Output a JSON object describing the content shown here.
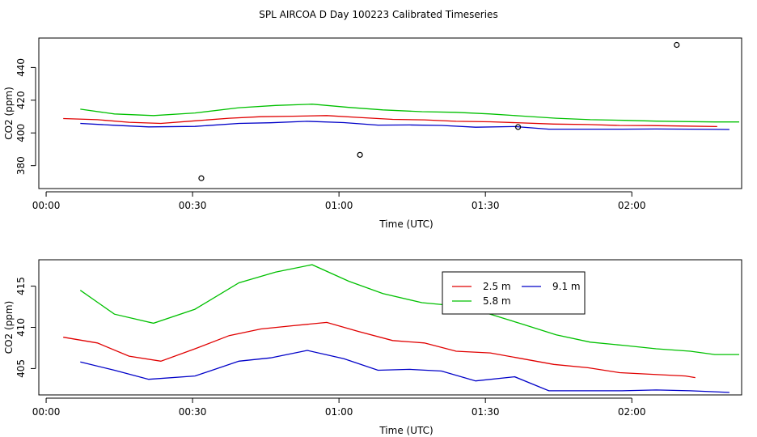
{
  "title": "SPL AIRCOA D  Day 100223  Calibrated Timeseries",
  "colors": {
    "s25": "#e00000",
    "s58": "#00c000",
    "s91": "#0000c8",
    "axis": "#000000"
  },
  "chart_data": [
    {
      "id": "top",
      "type": "line",
      "xlabel": "Time (UTC)",
      "ylabel": "CO2 (ppm)",
      "xlim": [
        -1.5,
        142.5
      ],
      "ylim": [
        366,
        458
      ],
      "xticks": [
        0,
        30,
        60,
        90,
        120
      ],
      "xticklabels": [
        "00:00",
        "00:30",
        "01:00",
        "01:30",
        "02:00"
      ],
      "yticks": [
        380,
        400,
        420,
        440
      ],
      "yticklabels": [
        "380",
        "400",
        "420",
        "440"
      ],
      "series": [
        {
          "name": "2.5 m",
          "color": "#e00000",
          "x": [
            3.5,
            10.5,
            17,
            23.5,
            30.5,
            37.5,
            44,
            50.5,
            57.5,
            64,
            71,
            77.5,
            84,
            91,
            97.5,
            104,
            111,
            117.5,
            124,
            131,
            137.5
          ],
          "y": [
            408.8,
            408.1,
            406.5,
            405.8,
            407.4,
            409.0,
            409.9,
            410.2,
            410.6,
            409.5,
            408.3,
            408.0,
            407.1,
            406.8,
            406.1,
            405.4,
            405.1,
            404.6,
            404.5,
            404.2,
            403.9
          ]
        },
        {
          "name": "5.8 m",
          "color": "#00c000",
          "x": [
            7,
            14,
            22,
            30.5,
            39.5,
            47,
            54.5,
            62,
            69,
            77,
            84,
            91,
            97.5,
            104.5,
            111.5,
            118.5,
            125,
            132,
            137,
            142
          ],
          "y": [
            414.5,
            411.6,
            410.6,
            412.2,
            415.4,
            416.8,
            417.6,
            415.6,
            414.1,
            413.0,
            412.6,
            411.6,
            410.3,
            409.0,
            408.1,
            407.7,
            407.2,
            406.9,
            406.7,
            406.7
          ]
        },
        {
          "name": "9.1 m",
          "color": "#0000c8",
          "x": [
            7,
            14,
            21,
            30.5,
            39.5,
            46,
            53.5,
            61,
            68,
            74.5,
            81,
            88,
            96,
            103,
            111,
            118,
            125,
            132,
            140
          ],
          "y": [
            405.8,
            404.7,
            403.7,
            404.0,
            405.8,
            406.2,
            407.1,
            406.3,
            404.8,
            404.9,
            404.6,
            403.5,
            403.9,
            402.3,
            402.3,
            402.3,
            402.4,
            402.3,
            402.1
          ]
        }
      ],
      "points": {
        "x": [
          31.8,
          64.3,
          96.7,
          129.2
        ],
        "y": [
          372.3,
          386.6,
          403.6,
          453.8
        ]
      }
    },
    {
      "id": "bottom",
      "type": "line",
      "xlabel": "Time (UTC)",
      "ylabel": "CO2 (ppm)",
      "xlim": [
        -1.5,
        142.5
      ],
      "ylim": [
        401.8,
        418.2
      ],
      "xticks": [
        0,
        30,
        60,
        90,
        120
      ],
      "xticklabels": [
        "00:00",
        "00:30",
        "01:00",
        "01:30",
        "02:00"
      ],
      "yticks": [
        405,
        410,
        415
      ],
      "yticklabels": [
        "405",
        "410",
        "415"
      ],
      "legend": {
        "position": "top-right",
        "entries": [
          "2.5 m",
          "9.1 m",
          "5.8 m"
        ]
      },
      "series": [
        {
          "name": "2.5 m",
          "color": "#e00000",
          "x": [
            3.5,
            10.5,
            17,
            23.5,
            30.5,
            37.5,
            44,
            50.5,
            57.5,
            64,
            71,
            77.5,
            84,
            91,
            97.5,
            104,
            111,
            117.5,
            124,
            131,
            133
          ],
          "y": [
            408.8,
            408.1,
            406.5,
            405.9,
            407.4,
            409.0,
            409.8,
            410.2,
            410.6,
            409.5,
            408.4,
            408.1,
            407.1,
            406.9,
            406.2,
            405.5,
            405.1,
            404.5,
            404.3,
            404.1,
            403.9
          ]
        },
        {
          "name": "5.8 m",
          "color": "#00c000",
          "x": [
            7,
            14,
            22,
            30.5,
            39.5,
            47,
            54.5,
            62,
            69,
            77,
            84,
            91,
            97.5,
            104.5,
            111.5,
            118.5,
            125,
            132,
            137,
            142
          ],
          "y": [
            414.5,
            411.6,
            410.5,
            412.2,
            415.4,
            416.7,
            417.6,
            415.6,
            414.1,
            413.0,
            412.6,
            411.6,
            410.4,
            409.1,
            408.2,
            407.8,
            407.4,
            407.1,
            406.7,
            406.7
          ]
        },
        {
          "name": "9.1 m",
          "color": "#0000c8",
          "x": [
            7,
            14,
            21,
            30.5,
            39.5,
            46,
            53.5,
            61,
            68,
            74.5,
            81,
            88,
            96,
            103,
            111,
            118,
            125,
            132,
            140
          ],
          "y": [
            405.8,
            404.8,
            403.7,
            404.1,
            405.9,
            406.3,
            407.2,
            406.2,
            404.8,
            404.9,
            404.7,
            403.5,
            404.0,
            402.3,
            402.3,
            402.3,
            402.4,
            402.3,
            402.1
          ]
        }
      ]
    }
  ]
}
